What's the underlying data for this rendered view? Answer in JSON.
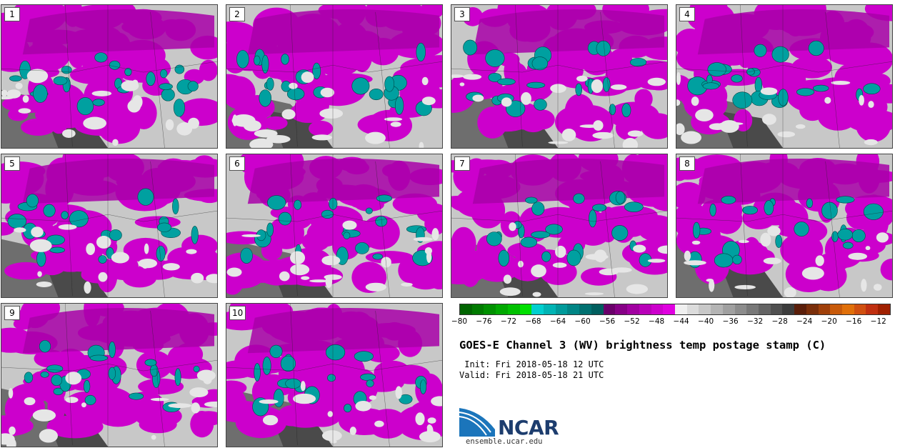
{
  "panels": [
    {
      "label": "1"
    },
    {
      "label": "2"
    },
    {
      "label": "3"
    },
    {
      "label": "4"
    },
    {
      "label": "5"
    },
    {
      "label": "6"
    },
    {
      "label": "7"
    },
    {
      "label": "8"
    },
    {
      "label": "9"
    },
    {
      "label": "10"
    }
  ],
  "colorbar": {
    "colors": [
      "#006400",
      "#007a00",
      "#009000",
      "#00a800",
      "#00c000",
      "#00e000",
      "#00cfcf",
      "#00b4b4",
      "#009a9a",
      "#008585",
      "#007070",
      "#005e5e",
      "#6a006a",
      "#860086",
      "#a000a0",
      "#b800b8",
      "#cc00cc",
      "#e000e0",
      "#f0f0f0",
      "#dcdcdc",
      "#c8c8c8",
      "#b4b4b4",
      "#a0a0a0",
      "#8c8c8c",
      "#787878",
      "#646464",
      "#505050",
      "#3c3c3c",
      "#5a1e0a",
      "#7a2e0a",
      "#a0400a",
      "#c85a0a",
      "#e0700a",
      "#d05010",
      "#c03010",
      "#a02000"
    ],
    "min": -80,
    "max": -10,
    "ticks": [
      "−80",
      "−76",
      "−72",
      "−68",
      "−64",
      "−60",
      "−56",
      "−52",
      "−48",
      "−44",
      "−40",
      "−36",
      "−32",
      "−28",
      "−24",
      "−20",
      "−16",
      "−12"
    ],
    "tick_values": [
      -80,
      -76,
      -72,
      -68,
      -64,
      -60,
      -56,
      -52,
      -48,
      -44,
      -40,
      -36,
      -32,
      -28,
      -24,
      -20,
      -16,
      -12
    ]
  },
  "title": "GOES-E Channel 3 (WV) brightness temp postage stamp (C)",
  "init": " Init: Fri 2018-05-18 12 UTC",
  "valid": "Valid: Fri 2018-05-18 21 UTC",
  "logo": {
    "text": "NCAR",
    "url": "ensemble.ucar.edu"
  }
}
